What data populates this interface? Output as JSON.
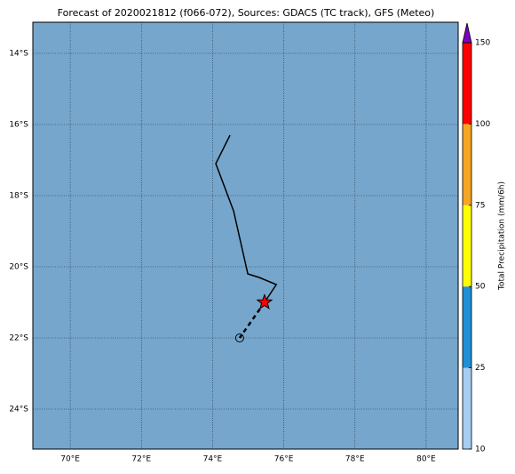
{
  "title": "Forecast of 2020021812 (f066-072), Sources: GDACS (TC track), GFS (Meteo)",
  "map": {
    "background": "#76a6cc",
    "lonlim": [
      68.95,
      80.9
    ],
    "latlim": [
      -13.125,
      -25.125
    ],
    "lon_ticks": [
      {
        "value": 70,
        "label": "70°E"
      },
      {
        "value": 72,
        "label": "72°E"
      },
      {
        "value": 74,
        "label": "74°E"
      },
      {
        "value": 76,
        "label": "76°E"
      },
      {
        "value": 78,
        "label": "78°E"
      },
      {
        "value": 80,
        "label": "80°E"
      }
    ],
    "lat_ticks": [
      {
        "value": -14,
        "label": "14°S"
      },
      {
        "value": -16,
        "label": "16°S"
      },
      {
        "value": -18,
        "label": "18°S"
      },
      {
        "value": -20,
        "label": "20°S"
      },
      {
        "value": -22,
        "label": "22°S"
      },
      {
        "value": -24,
        "label": "24°S"
      }
    ],
    "grid": true
  },
  "track": {
    "color": "#000000",
    "observed": {
      "lon": [
        74.49,
        74.09,
        74.59,
        74.99,
        75.31,
        75.79,
        75.46
      ],
      "lat": [
        -16.3,
        -17.1,
        -18.43,
        -20.2,
        -20.3,
        -20.5,
        -21.0
      ]
    },
    "forecast": {
      "lon": [
        75.46,
        74.76
      ],
      "lat": [
        -21.0,
        -22.0
      ]
    },
    "current_marker_color": "#ff0000"
  },
  "colorbar": {
    "label": "Total Precipitation (mm/6h)",
    "ticks": [
      10,
      25,
      50,
      75,
      100,
      150
    ],
    "colors": [
      "#a6cef0",
      "#1f8fd6",
      "#ffff00",
      "#f5a623",
      "#ff0000"
    ],
    "extend_color": "#8000c0"
  }
}
